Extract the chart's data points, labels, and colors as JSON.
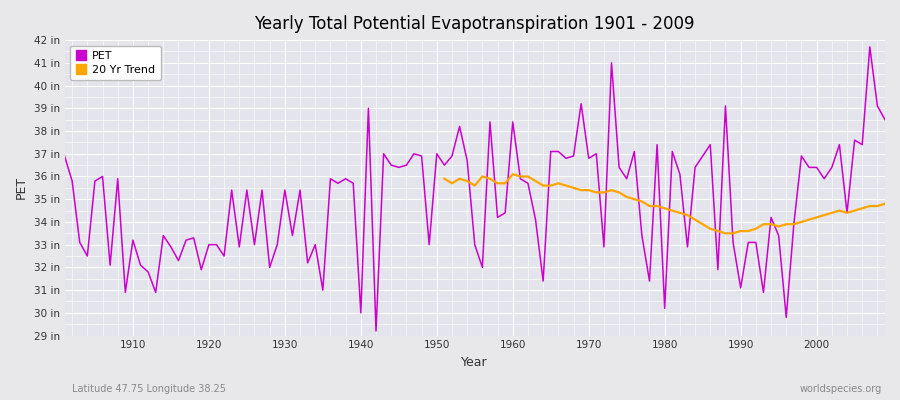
{
  "title": "Yearly Total Potential Evapotranspiration 1901 - 2009",
  "xlabel": "Year",
  "ylabel": "PET",
  "subtitle_left": "Latitude 47.75 Longitude 38.25",
  "subtitle_right": "worldspecies.org",
  "pet_color": "#CC00CC",
  "trend_color": "#FFA500",
  "bg_color": "#E8E8EA",
  "plot_bg_color": "#E4E4EC",
  "ylim": [
    29,
    42
  ],
  "xlim": [
    1901,
    2009
  ],
  "yticks": [
    29,
    30,
    31,
    32,
    33,
    34,
    35,
    36,
    37,
    38,
    39,
    40,
    41,
    42
  ],
  "xticks": [
    1910,
    1920,
    1930,
    1940,
    1950,
    1960,
    1970,
    1980,
    1990,
    2000
  ],
  "years": [
    1901,
    1902,
    1903,
    1904,
    1905,
    1906,
    1907,
    1908,
    1909,
    1910,
    1911,
    1912,
    1913,
    1914,
    1915,
    1916,
    1917,
    1918,
    1919,
    1920,
    1921,
    1922,
    1923,
    1924,
    1925,
    1926,
    1927,
    1928,
    1929,
    1930,
    1931,
    1932,
    1933,
    1934,
    1935,
    1936,
    1937,
    1938,
    1939,
    1940,
    1941,
    1942,
    1943,
    1944,
    1945,
    1946,
    1947,
    1948,
    1949,
    1950,
    1951,
    1952,
    1953,
    1954,
    1955,
    1956,
    1957,
    1958,
    1959,
    1960,
    1961,
    1962,
    1963,
    1964,
    1965,
    1966,
    1967,
    1968,
    1969,
    1970,
    1971,
    1972,
    1973,
    1974,
    1975,
    1976,
    1977,
    1978,
    1979,
    1980,
    1981,
    1982,
    1983,
    1984,
    1985,
    1986,
    1987,
    1988,
    1989,
    1990,
    1991,
    1992,
    1993,
    1994,
    1995,
    1996,
    1997,
    1998,
    1999,
    2000,
    2001,
    2002,
    2003,
    2004,
    2005,
    2006,
    2007,
    2008,
    2009
  ],
  "pet_values": [
    36.9,
    35.8,
    33.1,
    32.5,
    35.8,
    36.0,
    32.1,
    35.9,
    30.9,
    33.2,
    32.1,
    31.8,
    30.9,
    33.4,
    32.9,
    32.3,
    33.2,
    33.3,
    31.9,
    33.0,
    33.0,
    32.5,
    35.4,
    32.9,
    35.4,
    33.0,
    35.4,
    32.0,
    33.0,
    35.4,
    33.4,
    35.4,
    32.2,
    33.0,
    31.0,
    35.9,
    35.7,
    35.9,
    35.7,
    30.0,
    39.0,
    29.2,
    37.0,
    36.5,
    36.4,
    36.5,
    37.0,
    36.9,
    33.0,
    37.0,
    36.5,
    36.9,
    38.2,
    36.7,
    33.0,
    32.0,
    38.4,
    34.2,
    34.4,
    38.4,
    35.9,
    35.7,
    34.1,
    31.4,
    37.1,
    37.1,
    36.8,
    36.9,
    39.2,
    36.8,
    37.0,
    32.9,
    41.0,
    36.4,
    35.9,
    37.1,
    33.4,
    31.4,
    37.4,
    30.2,
    37.1,
    36.1,
    32.9,
    36.4,
    36.9,
    37.4,
    31.9,
    39.1,
    33.1,
    31.1,
    33.1,
    33.1,
    30.9,
    34.2,
    33.4,
    29.8,
    33.9,
    36.9,
    36.4,
    36.4,
    35.9,
    36.4,
    37.4,
    34.4,
    37.6,
    37.4,
    41.7,
    39.1,
    38.5
  ],
  "trend_values_years": [
    1951,
    1952,
    1953,
    1954,
    1955,
    1956,
    1957,
    1958,
    1959,
    1960,
    1961,
    1962,
    1963,
    1964,
    1965,
    1966,
    1967,
    1968,
    1969,
    1970,
    1971,
    1972,
    1973,
    1974,
    1975,
    1976,
    1977,
    1978,
    1979,
    1980,
    1981,
    1982,
    1983,
    1984,
    1985,
    1986,
    1987,
    1988,
    1989,
    1990,
    1991,
    1992,
    1993,
    1994,
    1995,
    1996,
    1997,
    1998,
    1999,
    2000,
    2001,
    2002,
    2003,
    2004,
    2005,
    2006,
    2007,
    2008,
    2009
  ],
  "trend_values": [
    35.9,
    35.7,
    35.9,
    35.8,
    35.6,
    36.0,
    35.9,
    35.7,
    35.7,
    36.1,
    36.0,
    36.0,
    35.8,
    35.6,
    35.6,
    35.7,
    35.6,
    35.5,
    35.4,
    35.4,
    35.3,
    35.3,
    35.4,
    35.3,
    35.1,
    35.0,
    34.9,
    34.7,
    34.7,
    34.6,
    34.5,
    34.4,
    34.3,
    34.1,
    33.9,
    33.7,
    33.6,
    33.5,
    33.5,
    33.6,
    33.6,
    33.7,
    33.9,
    33.9,
    33.8,
    33.9,
    33.9,
    34.0,
    34.1,
    34.2,
    34.3,
    34.4,
    34.5,
    34.4,
    34.5,
    34.6,
    34.7,
    34.7,
    34.8
  ]
}
